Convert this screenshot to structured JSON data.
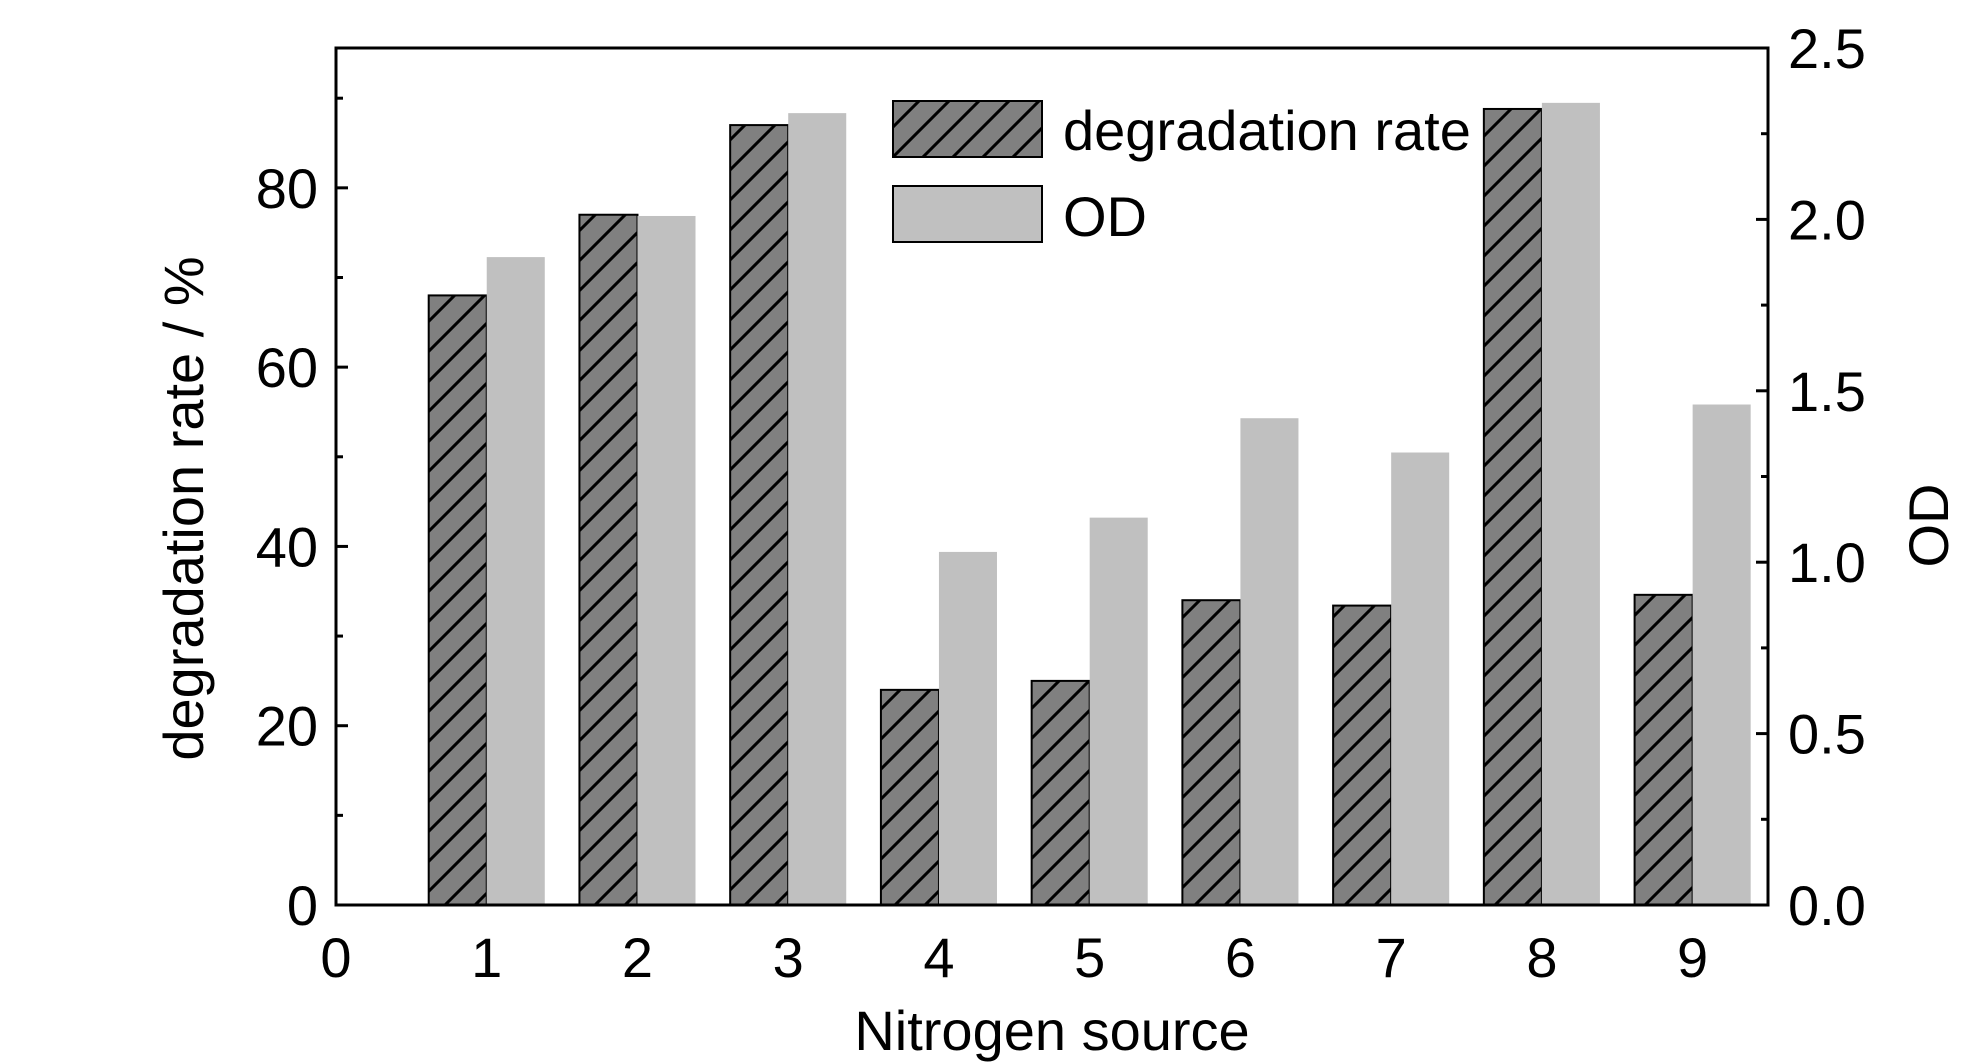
{
  "chart_data": {
    "type": "bar",
    "xlabel": "Nitrogen source",
    "ylabel": "degradation rate / %",
    "y2label": "OD",
    "x_ticks": [
      "0",
      "1",
      "2",
      "3",
      "4",
      "5",
      "6",
      "7",
      "8",
      "9"
    ],
    "categories": [
      "1",
      "2",
      "3",
      "4",
      "5",
      "6",
      "7",
      "8",
      "9"
    ],
    "xlim": [
      0,
      9.5
    ],
    "ylim": [
      0,
      95.6
    ],
    "y2lim": [
      0,
      2.5
    ],
    "y_ticks": [
      "0",
      "20",
      "40",
      "60",
      "80"
    ],
    "y2_ticks": [
      "0.0",
      "0.5",
      "1.0",
      "1.5",
      "2.0",
      "2.5"
    ],
    "series": [
      {
        "name": "degradation rate",
        "axis": "left",
        "color": "#808080",
        "pattern": "diagonal-hatch",
        "values": [
          68.0,
          77.0,
          87.0,
          24.0,
          25.0,
          34.0,
          33.4,
          88.8,
          34.6
        ]
      },
      {
        "name": "OD",
        "axis": "right",
        "color": "#c0c0c0",
        "pattern": "solid",
        "values": [
          1.89,
          2.01,
          2.31,
          1.03,
          1.13,
          1.42,
          1.32,
          2.34,
          1.46
        ]
      }
    ],
    "legend": "top-center",
    "grid": false
  }
}
